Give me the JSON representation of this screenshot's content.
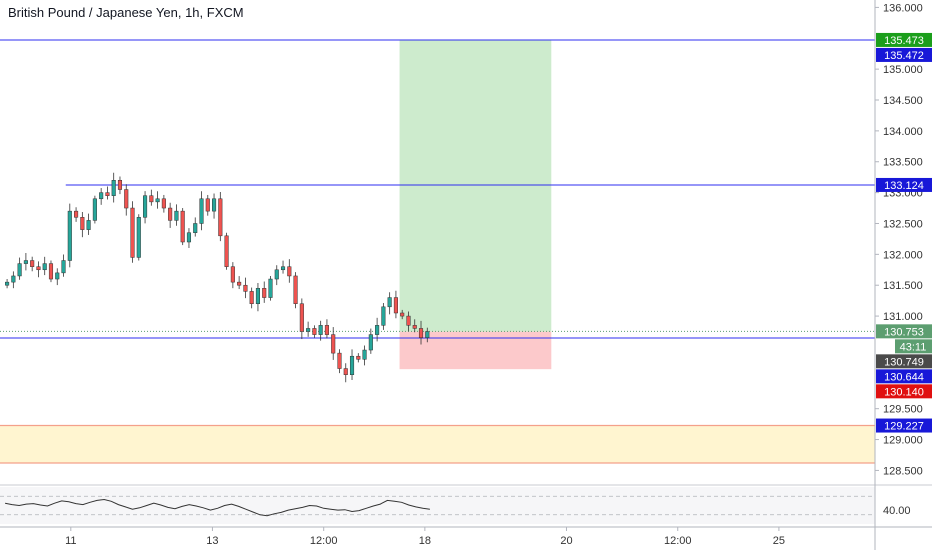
{
  "chart_title": "British Pound / Japanese Yen, 1h, FXCM",
  "chart_data": {
    "type": "candlestick",
    "symbol": "British Pound / Japanese Yen",
    "interval": "1h",
    "source": "FXCM",
    "price_axis_ticks": [
      "136.000",
      "135.000",
      "134.500",
      "134.000",
      "133.500",
      "133.000",
      "132.500",
      "132.000",
      "131.500",
      "131.000",
      "129.500",
      "129.000",
      "128.500"
    ],
    "ylim": [
      128.28,
      136.12
    ],
    "time_axis_labels": [
      {
        "label": "11",
        "x": 0.5
      },
      {
        "label": "13",
        "x": 14.5
      },
      {
        "label": "12:00",
        "x": 25.5
      },
      {
        "label": "18",
        "x": 35.5
      },
      {
        "label": "20",
        "x": 49.5
      },
      {
        "label": "12:00",
        "x": 60.5
      },
      {
        "label": "25",
        "x": 70.5
      }
    ],
    "xlim": [
      -6.5,
      80.0
    ],
    "price_path": [
      131.55,
      131.65,
      131.85,
      131.9,
      131.8,
      131.75,
      131.85,
      131.6,
      131.7,
      131.9,
      132.7,
      132.6,
      132.4,
      132.55,
      132.9,
      133.0,
      132.95,
      133.2,
      133.05,
      132.75,
      131.95,
      132.6,
      132.95,
      132.85,
      132.9,
      132.75,
      132.55,
      132.7,
      132.2,
      132.35,
      132.5,
      132.9,
      132.7,
      132.9,
      132.3,
      131.8,
      131.55,
      131.5,
      131.4,
      131.2,
      131.45,
      131.3,
      131.6,
      131.75,
      131.8,
      131.65,
      131.2,
      130.75,
      130.8,
      130.7,
      130.85,
      130.7,
      130.4,
      130.15,
      130.05,
      130.35,
      130.3,
      130.45,
      130.7,
      130.85,
      131.15,
      131.3,
      131.05,
      131.0,
      130.85,
      130.8,
      130.65,
      130.75
    ],
    "horizontal_lines": [
      135.472,
      133.124,
      130.644
    ],
    "position": {
      "entry": 130.749,
      "target": 135.473,
      "stop": 130.14,
      "x_start": 33.0,
      "x_end": 48.0
    },
    "zone": {
      "top": 129.227,
      "bottom": 128.62
    },
    "current_price": 130.753,
    "countdown": "43:11",
    "price_labels": [
      {
        "text": "135.473",
        "value": 135.473,
        "color": "#1b9e1b"
      },
      {
        "text": "135.472",
        "value": 135.472,
        "color": "#1818d8"
      },
      {
        "text": "133.124",
        "value": 133.124,
        "color": "#1818d8"
      },
      {
        "text": "130.753",
        "value": 130.753,
        "color": "#5c9e70"
      },
      {
        "text": "130.749",
        "value": 130.749,
        "color": "#4a4a4a"
      },
      {
        "text": "130.644",
        "value": 130.644,
        "color": "#1818d8"
      },
      {
        "text": "130.140",
        "value": 130.14,
        "color": "#e01010"
      },
      {
        "text": "129.227",
        "value": 129.227,
        "color": "#1818d8"
      }
    ],
    "rsi": {
      "axis_label": "40.00",
      "values": [
        55,
        52,
        50,
        53,
        54,
        51,
        49,
        55,
        60,
        58,
        54,
        52,
        57,
        61,
        63,
        59,
        52,
        47,
        42,
        45,
        50,
        55,
        51,
        46,
        43,
        48,
        52,
        49,
        45,
        40,
        44,
        50,
        53,
        48,
        42,
        36,
        30,
        28,
        32,
        35,
        40,
        43,
        46,
        50,
        49,
        44,
        42,
        40,
        41,
        37,
        39,
        44,
        49,
        53,
        61,
        59,
        57,
        51,
        47,
        44,
        42
      ]
    },
    "colors": {
      "up": "#26a69a",
      "down": "#ef5350",
      "line": "#2e2ef0",
      "target_fill": "#cdebcd",
      "stop_fill": "#fcc9cb",
      "zone_fill": "#fff5d0",
      "zone_border": "#f4a08a"
    }
  }
}
